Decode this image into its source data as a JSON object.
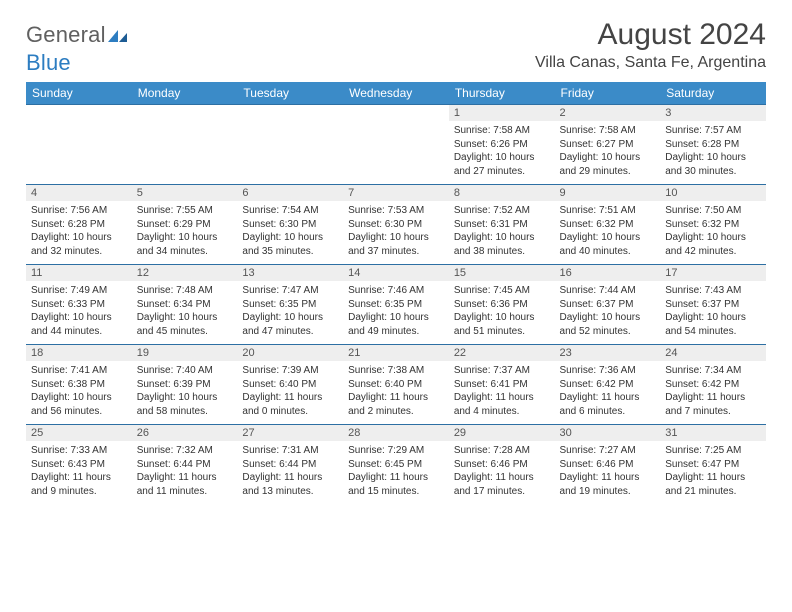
{
  "logo": {
    "word1": "General",
    "word2": "Blue"
  },
  "title": "August 2024",
  "location": "Villa Canas, Santa Fe, Argentina",
  "colors": {
    "header_bg": "#3b8bc8",
    "header_text": "#ffffff",
    "row_border": "#2d6fa3",
    "daynum_bg": "#eeeeee",
    "text": "#333333",
    "logo_gray": "#606060",
    "logo_blue": "#2d7dc1"
  },
  "day_headers": [
    "Sunday",
    "Monday",
    "Tuesday",
    "Wednesday",
    "Thursday",
    "Friday",
    "Saturday"
  ],
  "weeks": [
    [
      {
        "empty": true
      },
      {
        "empty": true
      },
      {
        "empty": true
      },
      {
        "empty": true
      },
      {
        "n": "1",
        "sr": "7:58 AM",
        "ss": "6:26 PM",
        "dl": "10 hours and 27 minutes."
      },
      {
        "n": "2",
        "sr": "7:58 AM",
        "ss": "6:27 PM",
        "dl": "10 hours and 29 minutes."
      },
      {
        "n": "3",
        "sr": "7:57 AM",
        "ss": "6:28 PM",
        "dl": "10 hours and 30 minutes."
      }
    ],
    [
      {
        "n": "4",
        "sr": "7:56 AM",
        "ss": "6:28 PM",
        "dl": "10 hours and 32 minutes."
      },
      {
        "n": "5",
        "sr": "7:55 AM",
        "ss": "6:29 PM",
        "dl": "10 hours and 34 minutes."
      },
      {
        "n": "6",
        "sr": "7:54 AM",
        "ss": "6:30 PM",
        "dl": "10 hours and 35 minutes."
      },
      {
        "n": "7",
        "sr": "7:53 AM",
        "ss": "6:30 PM",
        "dl": "10 hours and 37 minutes."
      },
      {
        "n": "8",
        "sr": "7:52 AM",
        "ss": "6:31 PM",
        "dl": "10 hours and 38 minutes."
      },
      {
        "n": "9",
        "sr": "7:51 AM",
        "ss": "6:32 PM",
        "dl": "10 hours and 40 minutes."
      },
      {
        "n": "10",
        "sr": "7:50 AM",
        "ss": "6:32 PM",
        "dl": "10 hours and 42 minutes."
      }
    ],
    [
      {
        "n": "11",
        "sr": "7:49 AM",
        "ss": "6:33 PM",
        "dl": "10 hours and 44 minutes."
      },
      {
        "n": "12",
        "sr": "7:48 AM",
        "ss": "6:34 PM",
        "dl": "10 hours and 45 minutes."
      },
      {
        "n": "13",
        "sr": "7:47 AM",
        "ss": "6:35 PM",
        "dl": "10 hours and 47 minutes."
      },
      {
        "n": "14",
        "sr": "7:46 AM",
        "ss": "6:35 PM",
        "dl": "10 hours and 49 minutes."
      },
      {
        "n": "15",
        "sr": "7:45 AM",
        "ss": "6:36 PM",
        "dl": "10 hours and 51 minutes."
      },
      {
        "n": "16",
        "sr": "7:44 AM",
        "ss": "6:37 PM",
        "dl": "10 hours and 52 minutes."
      },
      {
        "n": "17",
        "sr": "7:43 AM",
        "ss": "6:37 PM",
        "dl": "10 hours and 54 minutes."
      }
    ],
    [
      {
        "n": "18",
        "sr": "7:41 AM",
        "ss": "6:38 PM",
        "dl": "10 hours and 56 minutes."
      },
      {
        "n": "19",
        "sr": "7:40 AM",
        "ss": "6:39 PM",
        "dl": "10 hours and 58 minutes."
      },
      {
        "n": "20",
        "sr": "7:39 AM",
        "ss": "6:40 PM",
        "dl": "11 hours and 0 minutes."
      },
      {
        "n": "21",
        "sr": "7:38 AM",
        "ss": "6:40 PM",
        "dl": "11 hours and 2 minutes."
      },
      {
        "n": "22",
        "sr": "7:37 AM",
        "ss": "6:41 PM",
        "dl": "11 hours and 4 minutes."
      },
      {
        "n": "23",
        "sr": "7:36 AM",
        "ss": "6:42 PM",
        "dl": "11 hours and 6 minutes."
      },
      {
        "n": "24",
        "sr": "7:34 AM",
        "ss": "6:42 PM",
        "dl": "11 hours and 7 minutes."
      }
    ],
    [
      {
        "n": "25",
        "sr": "7:33 AM",
        "ss": "6:43 PM",
        "dl": "11 hours and 9 minutes."
      },
      {
        "n": "26",
        "sr": "7:32 AM",
        "ss": "6:44 PM",
        "dl": "11 hours and 11 minutes."
      },
      {
        "n": "27",
        "sr": "7:31 AM",
        "ss": "6:44 PM",
        "dl": "11 hours and 13 minutes."
      },
      {
        "n": "28",
        "sr": "7:29 AM",
        "ss": "6:45 PM",
        "dl": "11 hours and 15 minutes."
      },
      {
        "n": "29",
        "sr": "7:28 AM",
        "ss": "6:46 PM",
        "dl": "11 hours and 17 minutes."
      },
      {
        "n": "30",
        "sr": "7:27 AM",
        "ss": "6:46 PM",
        "dl": "11 hours and 19 minutes."
      },
      {
        "n": "31",
        "sr": "7:25 AM",
        "ss": "6:47 PM",
        "dl": "11 hours and 21 minutes."
      }
    ]
  ],
  "labels": {
    "sunrise": "Sunrise:",
    "sunset": "Sunset:",
    "daylight": "Daylight:"
  }
}
